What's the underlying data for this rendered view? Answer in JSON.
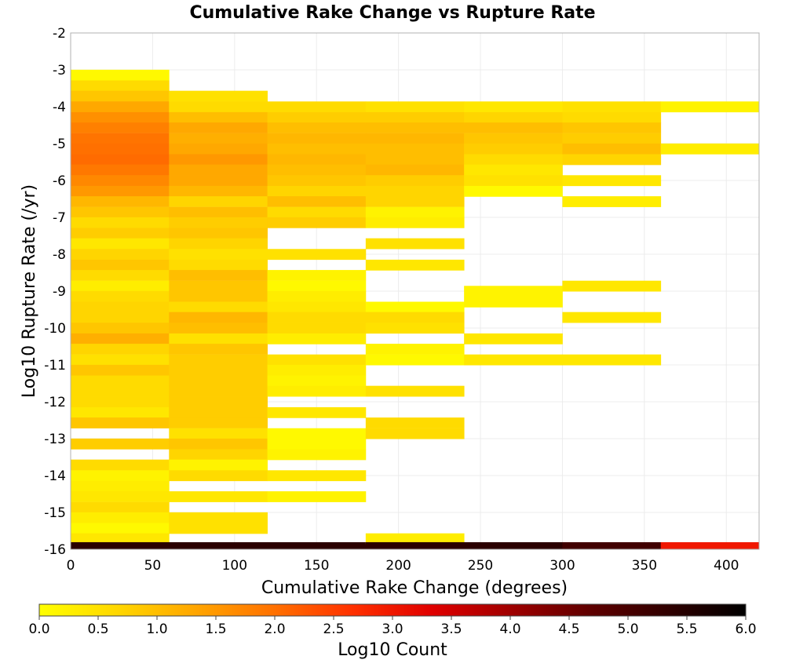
{
  "chart_data": {
    "type": "heatmap",
    "title": "Cumulative Rake Change vs Rupture Rate",
    "xlabel": "Cumulative Rake Change (degrees)",
    "ylabel": "Log10 Rupture Rate (/yr)",
    "xlim": [
      0,
      420
    ],
    "ylim": [
      -16,
      -2
    ],
    "x_ticks": [
      0,
      50,
      100,
      150,
      200,
      250,
      300,
      350,
      400
    ],
    "y_ticks": [
      -2,
      -3,
      -4,
      -5,
      -6,
      -7,
      -8,
      -9,
      -10,
      -11,
      -12,
      -13,
      -14,
      -15,
      -16
    ],
    "x_bin_width": 60,
    "y_bin_height": 0.2857,
    "grid": true,
    "colorbar": {
      "label": "Log10 Count",
      "range": [
        0,
        6
      ],
      "ticks": [
        "0.0",
        "0.5",
        "1.0",
        "1.5",
        "2.0",
        "2.5",
        "3.0",
        "3.5",
        "4.0",
        "4.5",
        "5.0",
        "5.5",
        "6.0"
      ],
      "colors": [
        "#ffff00",
        "#ffd700",
        "#ffa500",
        "#ff7000",
        "#ff3000",
        "#e00000",
        "#a00000",
        "#600000",
        "#300000",
        "#000000"
      ]
    },
    "cells": [
      {
        "x": 30,
        "values": [
          [
            -3.14,
            0.1
          ],
          [
            -3.43,
            0.6
          ],
          [
            -3.71,
            0.9
          ],
          [
            -4.0,
            1.3
          ],
          [
            -4.29,
            1.6
          ],
          [
            -4.57,
            1.8
          ],
          [
            -4.86,
            1.95
          ],
          [
            -5.14,
            2.0
          ],
          [
            -5.43,
            2.05
          ],
          [
            -5.71,
            1.9
          ],
          [
            -6.0,
            1.7
          ],
          [
            -6.29,
            1.5
          ],
          [
            -6.57,
            1.1
          ],
          [
            -6.86,
            0.9
          ],
          [
            -7.14,
            0.6
          ],
          [
            -7.43,
            0.8
          ],
          [
            -7.71,
            0.4
          ],
          [
            -8.0,
            0.7
          ],
          [
            -8.29,
            0.9
          ],
          [
            -8.57,
            0.6
          ],
          [
            -8.86,
            0.3
          ],
          [
            -9.14,
            0.6
          ],
          [
            -9.43,
            0.7
          ],
          [
            -9.71,
            0.7
          ],
          [
            -10.0,
            0.9
          ],
          [
            -10.29,
            1.2
          ],
          [
            -10.57,
            0.7
          ],
          [
            -10.86,
            0.5
          ],
          [
            -11.14,
            0.9
          ],
          [
            -11.43,
            0.6
          ],
          [
            -11.71,
            0.6
          ],
          [
            -12.0,
            0.6
          ],
          [
            -12.29,
            0.4
          ],
          [
            -12.57,
            0.9
          ],
          [
            -13.14,
            0.8
          ],
          [
            -13.71,
            0.6
          ],
          [
            -14.0,
            0.2
          ],
          [
            -14.29,
            0.3
          ],
          [
            -14.57,
            0.4
          ],
          [
            -14.86,
            0.6
          ],
          [
            -15.14,
            0.3
          ],
          [
            -15.43,
            0.1
          ],
          [
            -15.71,
            0.4
          ],
          [
            -15.95,
            5.4
          ]
        ]
      },
      {
        "x": 90,
        "values": [
          [
            -3.71,
            0.5
          ],
          [
            -4.0,
            0.6
          ],
          [
            -4.29,
            1.0
          ],
          [
            -4.57,
            1.3
          ],
          [
            -4.86,
            1.2
          ],
          [
            -5.14,
            1.3
          ],
          [
            -5.43,
            1.5
          ],
          [
            -5.71,
            1.3
          ],
          [
            -6.0,
            1.3
          ],
          [
            -6.29,
            1.1
          ],
          [
            -6.57,
            0.7
          ],
          [
            -6.86,
            1.0
          ],
          [
            -7.14,
            0.8
          ],
          [
            -7.43,
            0.9
          ],
          [
            -7.71,
            0.7
          ],
          [
            -8.0,
            0.5
          ],
          [
            -8.29,
            0.6
          ],
          [
            -8.57,
            1.0
          ],
          [
            -8.86,
            0.9
          ],
          [
            -9.14,
            0.9
          ],
          [
            -9.43,
            0.6
          ],
          [
            -9.71,
            1.1
          ],
          [
            -10.0,
            1.0
          ],
          [
            -10.29,
            0.5
          ],
          [
            -10.57,
            0.9
          ],
          [
            -10.86,
            0.8
          ],
          [
            -11.14,
            0.8
          ],
          [
            -11.43,
            0.8
          ],
          [
            -11.71,
            0.8
          ],
          [
            -12.0,
            0.8
          ],
          [
            -12.29,
            0.8
          ],
          [
            -12.57,
            0.8
          ],
          [
            -12.86,
            0.5
          ],
          [
            -13.14,
            0.9
          ],
          [
            -13.43,
            0.7
          ],
          [
            -13.71,
            0.2
          ],
          [
            -14.0,
            0.6
          ],
          [
            -14.57,
            0.4
          ],
          [
            -15.14,
            0.5
          ],
          [
            -15.43,
            0.5
          ],
          [
            -15.95,
            5.4
          ]
        ]
      },
      {
        "x": 150,
        "values": [
          [
            -4.0,
            0.6
          ],
          [
            -4.29,
            0.8
          ],
          [
            -4.57,
            1.0
          ],
          [
            -4.86,
            1.1
          ],
          [
            -5.14,
            1.0
          ],
          [
            -5.43,
            1.1
          ],
          [
            -5.71,
            1.0
          ],
          [
            -6.0,
            0.9
          ],
          [
            -6.29,
            0.7
          ],
          [
            -6.57,
            1.0
          ],
          [
            -6.86,
            0.6
          ],
          [
            -7.14,
            0.8
          ],
          [
            -8.0,
            0.5
          ],
          [
            -8.57,
            0.2
          ],
          [
            -8.86,
            0.1
          ],
          [
            -9.14,
            0.3
          ],
          [
            -9.43,
            0.4
          ],
          [
            -9.71,
            0.6
          ],
          [
            -10.0,
            0.6
          ],
          [
            -10.29,
            0.3
          ],
          [
            -10.86,
            0.5
          ],
          [
            -11.14,
            0.3
          ],
          [
            -11.43,
            0.2
          ],
          [
            -11.71,
            0.3
          ],
          [
            -12.29,
            0.4
          ],
          [
            -12.86,
            0.1
          ],
          [
            -13.14,
            0.1
          ],
          [
            -13.43,
            0.2
          ],
          [
            -14.0,
            0.4
          ],
          [
            -14.57,
            0.2
          ],
          [
            -15.95,
            5.4
          ]
        ]
      },
      {
        "x": 210,
        "values": [
          [
            -4.0,
            0.5
          ],
          [
            -4.29,
            0.8
          ],
          [
            -4.57,
            1.0
          ],
          [
            -4.86,
            1.1
          ],
          [
            -5.14,
            1.0
          ],
          [
            -5.43,
            1.0
          ],
          [
            -5.71,
            1.1
          ],
          [
            -6.0,
            0.8
          ],
          [
            -6.29,
            0.7
          ],
          [
            -6.57,
            0.7
          ],
          [
            -6.86,
            0.2
          ],
          [
            -7.14,
            0.3
          ],
          [
            -7.71,
            0.5
          ],
          [
            -8.29,
            0.4
          ],
          [
            -9.43,
            0.1
          ],
          [
            -9.71,
            0.6
          ],
          [
            -10.0,
            0.5
          ],
          [
            -10.57,
            0.2
          ],
          [
            -10.86,
            0.1
          ],
          [
            -11.71,
            0.5
          ],
          [
            -12.57,
            0.6
          ],
          [
            -12.86,
            0.6
          ],
          [
            -15.71,
            0.3
          ],
          [
            -15.95,
            5.4
          ]
        ]
      },
      {
        "x": 270,
        "values": [
          [
            -4.0,
            0.4
          ],
          [
            -4.29,
            0.7
          ],
          [
            -4.57,
            1.0
          ],
          [
            -4.86,
            0.9
          ],
          [
            -5.14,
            0.8
          ],
          [
            -5.43,
            0.6
          ],
          [
            -5.71,
            0.4
          ],
          [
            -6.0,
            0.5
          ],
          [
            -6.29,
            0.1
          ],
          [
            -9.0,
            0.2
          ],
          [
            -9.29,
            0.2
          ],
          [
            -10.29,
            0.4
          ],
          [
            -10.86,
            0.4
          ],
          [
            -15.95,
            5.4
          ]
        ]
      },
      {
        "x": 330,
        "values": [
          [
            -4.0,
            0.5
          ],
          [
            -4.29,
            0.6
          ],
          [
            -4.57,
            0.9
          ],
          [
            -4.86,
            0.8
          ],
          [
            -5.14,
            1.0
          ],
          [
            -5.43,
            0.7
          ],
          [
            -6.0,
            0.4
          ],
          [
            -6.57,
            0.3
          ],
          [
            -8.86,
            0.4
          ],
          [
            -9.71,
            0.4
          ],
          [
            -10.86,
            0.4
          ],
          [
            -15.95,
            5.1
          ]
        ]
      },
      {
        "x": 390,
        "values": [
          [
            -4.0,
            0.2
          ],
          [
            -5.14,
            0.3
          ],
          [
            -15.95,
            3.0
          ]
        ]
      }
    ]
  }
}
